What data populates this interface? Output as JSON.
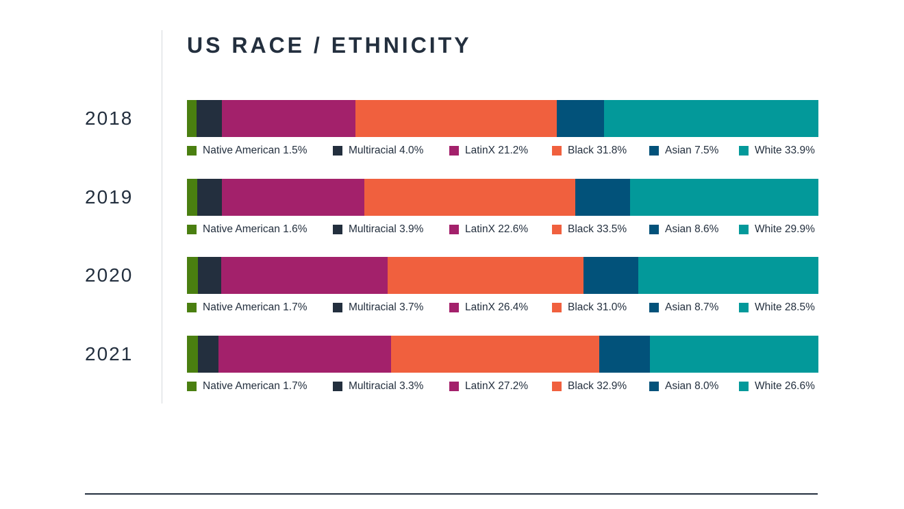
{
  "chart_data": {
    "type": "bar",
    "orientation": "horizontal",
    "stacked": true,
    "normalized": true,
    "title": "US RACE / ETHNICITY",
    "categories": [
      "2018",
      "2019",
      "2020",
      "2021"
    ],
    "colors": {
      "Native American": "#4a7f10",
      "Multiracial": "#232f3e",
      "LatinX": "#a3216b",
      "Black": "#f0603e",
      "Asian": "#02527a",
      "White": "#03999a"
    },
    "series": [
      {
        "name": "Native American",
        "values": [
          1.5,
          1.6,
          1.7,
          1.7
        ]
      },
      {
        "name": "Multiracial",
        "values": [
          4.0,
          3.9,
          3.7,
          3.3
        ]
      },
      {
        "name": "LatinX",
        "values": [
          21.2,
          22.6,
          26.4,
          27.2
        ]
      },
      {
        "name": "Black",
        "values": [
          31.8,
          33.5,
          31.0,
          32.9
        ]
      },
      {
        "name": "Asian",
        "values": [
          7.5,
          8.6,
          8.7,
          8.0
        ]
      },
      {
        "name": "White",
        "values": [
          33.9,
          29.9,
          28.5,
          26.6
        ]
      }
    ],
    "legend_labels": [
      [
        "Native American 1.5%",
        "Multiracial 4.0%",
        "LatinX 21.2%",
        "Black 31.8%",
        "Asian 7.5%",
        "White 33.9%"
      ],
      [
        "Native American 1.6%",
        "Multiracial 3.9%",
        "LatinX 22.6%",
        "Black 33.5%",
        "Asian 8.6%",
        "White 29.9%"
      ],
      [
        "Native American 1.7%",
        "Multiracial 3.7%",
        "LatinX 26.4%",
        "Black 31.0%",
        "Asian 8.7%",
        "White 28.5%"
      ],
      [
        "Native American 1.7%",
        "Multiracial 3.3%",
        "LatinX 27.2%",
        "Black 32.9%",
        "Asian 8.0%",
        "White 26.6%"
      ]
    ],
    "legend_placement": "below each bar",
    "grid": false
  }
}
